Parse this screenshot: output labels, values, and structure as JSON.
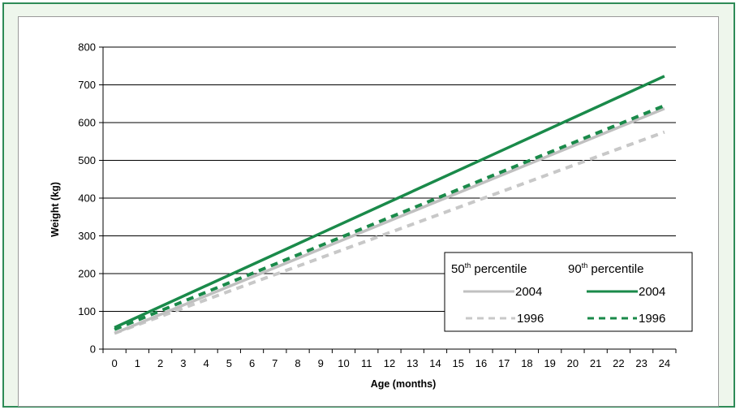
{
  "colors": {
    "frame_border": "#2e8b57",
    "frame_background": "#eef6ec",
    "series_2004_50th": "#c0c0c0",
    "series_1996_50th": "#c8c8c8",
    "series_2004_90th": "#1a8a4a",
    "series_1996_90th": "#1a8a4a"
  },
  "chart_data": {
    "type": "line",
    "xlabel": "Age (months)",
    "ylabel": "Weight (kg)",
    "x": [
      0,
      24
    ],
    "xticks": [
      "0",
      "1",
      "2",
      "3",
      "4",
      "5",
      "6",
      "7",
      "8",
      "9",
      "10",
      "11",
      "12",
      "13",
      "14",
      "15",
      "16",
      "17",
      "18",
      "19",
      "20",
      "21",
      "22",
      "23",
      "24"
    ],
    "yticks": [
      "0",
      "100",
      "200",
      "300",
      "400",
      "500",
      "600",
      "700",
      "800"
    ],
    "xlim": [
      0,
      24
    ],
    "ylim": [
      0,
      800
    ],
    "grid": "horizontal",
    "legend_placement": "bottom-right",
    "legend": {
      "group_50_base": "50",
      "group_50_sup": "th",
      "group_50_rest": " percentile",
      "group_90_base": "90",
      "group_90_sup": "th",
      "group_90_rest": " percentile",
      "row1": "2004",
      "row2": "1996"
    },
    "series": [
      {
        "group": "50th percentile",
        "name": "2004",
        "style": "solid",
        "color": "#c0c0c0",
        "values": [
          42,
          637
        ]
      },
      {
        "group": "50th percentile",
        "name": "1996",
        "style": "dashed",
        "color": "#c8c8c8",
        "values": [
          42,
          575
        ]
      },
      {
        "group": "90th percentile",
        "name": "2004",
        "style": "solid",
        "color": "#1a8a4a",
        "values": [
          57,
          723
        ]
      },
      {
        "group": "90th percentile",
        "name": "1996",
        "style": "dashed",
        "color": "#1a8a4a",
        "values": [
          52,
          645
        ]
      }
    ]
  }
}
